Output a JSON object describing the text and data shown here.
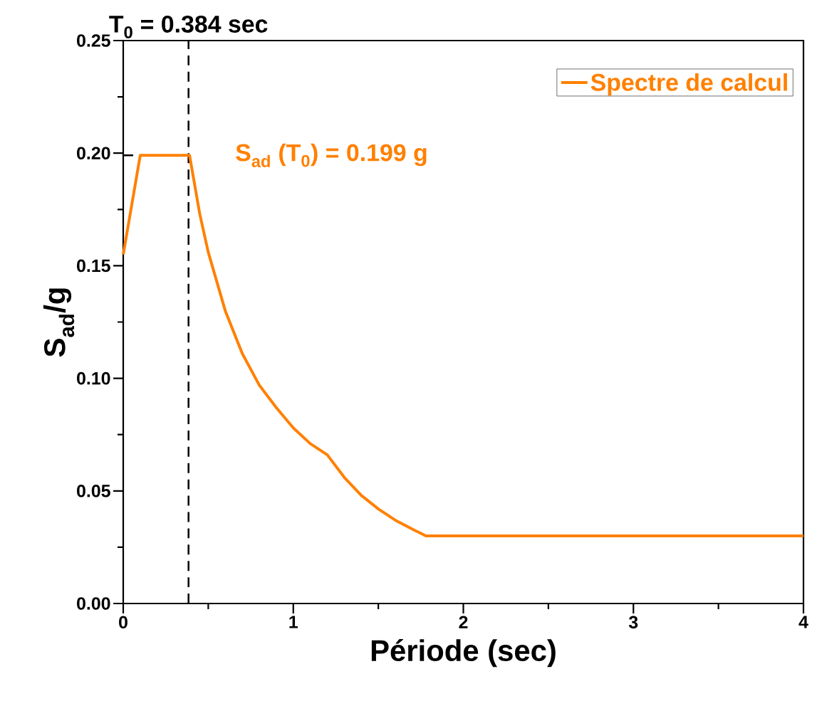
{
  "chart_data": {
    "type": "line",
    "xlabel": "Période (sec)",
    "ylabel": "S$_{ad}$/g",
    "series": [
      {
        "name": "Spectre de calcul",
        "color": "#ff8000",
        "x": [
          0,
          0.1,
          0.39,
          0.45,
          0.5,
          0.6,
          0.7,
          0.8,
          0.9,
          1.0,
          1.1,
          1.2,
          1.3,
          1.4,
          1.5,
          1.6,
          1.7,
          1.78,
          4
        ],
        "values": [
          0.155,
          0.199,
          0.199,
          0.173,
          0.156,
          0.13,
          0.111,
          0.097,
          0.087,
          0.078,
          0.071,
          0.066,
          0.056,
          0.048,
          0.042,
          0.037,
          0.033,
          0.03,
          0.03
        ]
      }
    ],
    "xlim": [
      0,
      4
    ],
    "ylim": [
      0,
      0.25
    ],
    "xticks": [
      0,
      1,
      2,
      3,
      4
    ],
    "yticks": [
      {
        "value": 0,
        "label": "0.00"
      },
      {
        "value": 0.05,
        "label": "0.05"
      },
      {
        "value": 0.1,
        "label": "0.10"
      },
      {
        "value": 0.15,
        "label": "0.15"
      },
      {
        "value": 0.2,
        "label": "0.20"
      },
      {
        "value": 0.25,
        "label": "0.25"
      }
    ],
    "ref_lines": [
      {
        "axis": "x",
        "value": 0.384,
        "label": "T$_{0}$ = 0.384 sec",
        "color": "#000000",
        "line_style": "dashed"
      },
      {
        "axis": "y",
        "value": 0.199,
        "color": "#000000",
        "line_style": "dashed"
      }
    ],
    "annotations": [
      {
        "text": "S$_{ad}$ (T$_{0}$) = 0.199 g",
        "x": 0.384,
        "y": 0.199
      }
    ],
    "legend": "top right",
    "grid": false,
    "marker": "none",
    "line_style": "solid"
  }
}
